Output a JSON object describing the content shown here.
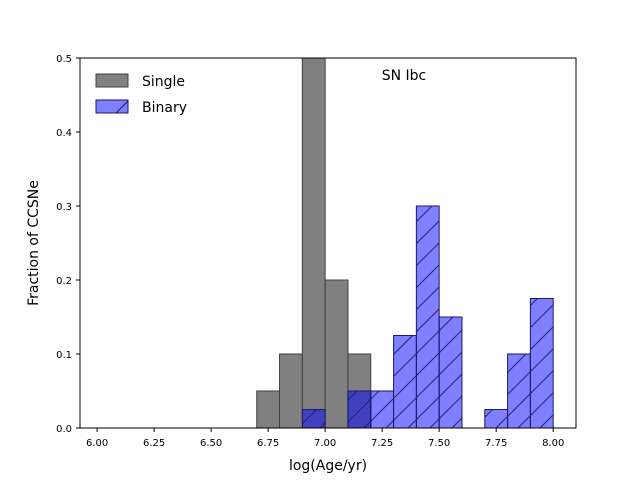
{
  "chart_data": {
    "type": "bar",
    "title": "",
    "annotation": "SN Ibc",
    "xlabel": "log(Age/yr)",
    "ylabel": "Fraction of CCSNe",
    "xlim": [
      5.925,
      8.1
    ],
    "ylim": [
      0,
      0.5
    ],
    "xticks": [
      "6.00",
      "6.25",
      "6.50",
      "6.75",
      "7.00",
      "7.25",
      "7.50",
      "7.75",
      "8.00"
    ],
    "yticks": [
      "0.0",
      "0.1",
      "0.2",
      "0.3",
      "0.4",
      "0.5"
    ],
    "bin_width": 0.1,
    "legend_position": "upper-left",
    "series": [
      {
        "name": "Single",
        "color": "#808080",
        "edge": "#404040",
        "hatch": false,
        "bin_left_edges": [
          6.7,
          6.8,
          6.9,
          7.0,
          7.1
        ],
        "values": [
          0.05,
          0.1,
          0.5,
          0.2,
          0.1
        ]
      },
      {
        "name": "Binary",
        "color": "#0000ff",
        "edge": "#1a1a66",
        "hatch": true,
        "bin_left_edges": [
          6.9,
          7.1,
          7.2,
          7.3,
          7.4,
          7.5,
          7.7,
          7.8,
          7.9
        ],
        "values": [
          0.025,
          0.05,
          0.05,
          0.125,
          0.3,
          0.15,
          0.025,
          0.1,
          0.175
        ]
      }
    ]
  }
}
